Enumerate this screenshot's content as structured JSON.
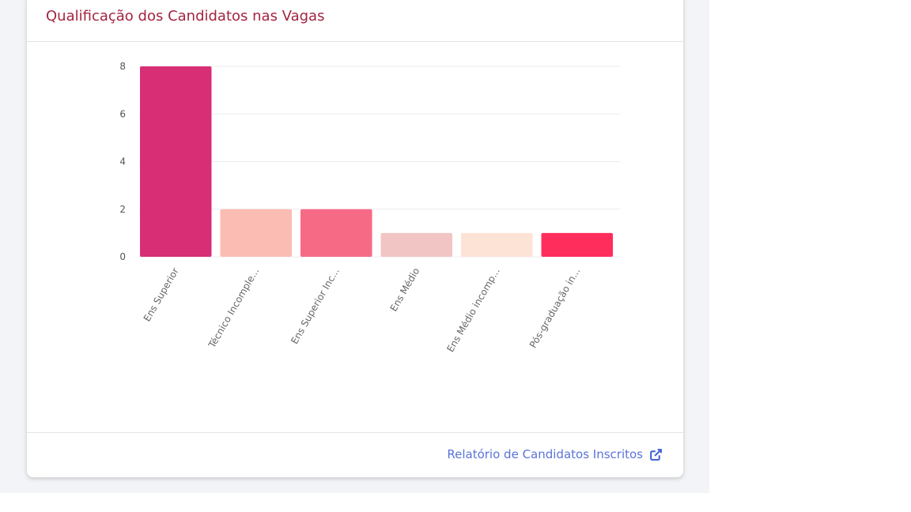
{
  "card": {
    "title": "Qualificação dos Candidatos nas Vagas",
    "footer_link": "Relatório de Candidatos Inscritos",
    "footer_icon": "external-link-icon"
  },
  "chart_data": {
    "type": "bar",
    "categories": [
      "Ens Superior",
      "Técnico Incomple...",
      "Ens Superior Inc...",
      "Ens Médio",
      "Ens Médio incomp...",
      "Pós-graduação in..."
    ],
    "values": [
      8,
      2,
      2,
      1,
      1,
      1
    ],
    "colors": [
      "#d82e76",
      "#fbbcb3",
      "#f76a86",
      "#f2c5c5",
      "#fde3d5",
      "#ff2d5c"
    ],
    "ylim": [
      0,
      8
    ],
    "yticks": [
      0,
      2,
      4,
      6,
      8
    ],
    "grid": true,
    "title": "",
    "xlabel": "",
    "ylabel": ""
  }
}
